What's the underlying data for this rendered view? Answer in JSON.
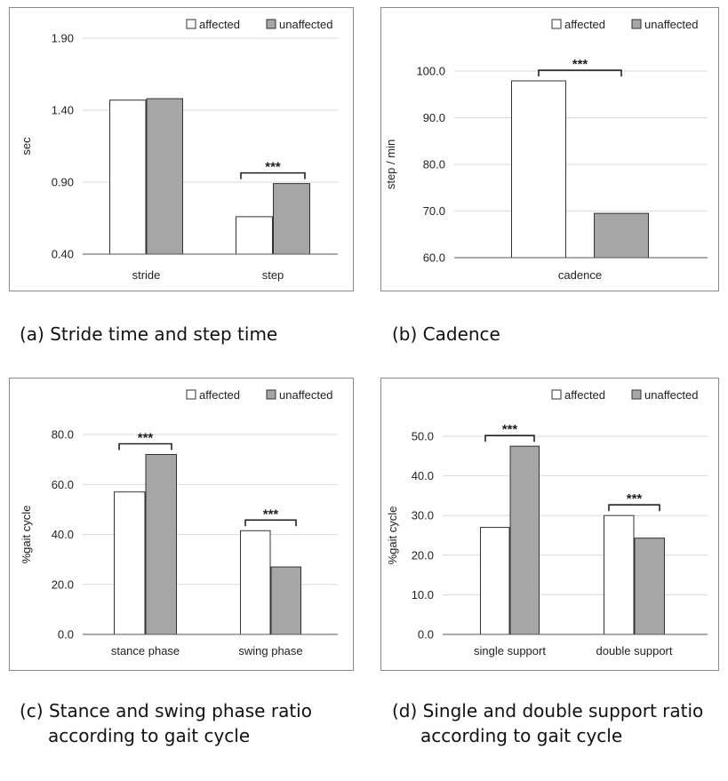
{
  "colors": {
    "affected": "#ffffff",
    "unaffected": "#a6a6a6",
    "border": "#6f6f6f",
    "grid": "#d9d9d9",
    "text": "#222222"
  },
  "legend": {
    "affected": "affected",
    "unaffected": "unaffected"
  },
  "significance_marker": "***",
  "captions": [
    {
      "line1": "(a) Stride time and step time",
      "line2": ""
    },
    {
      "line1": "(b) Cadence",
      "line2": ""
    },
    {
      "line1": "(c) Stance and swing phase ratio",
      "line2": "according to gait cycle"
    },
    {
      "line1": "(d) Single and double support ratio",
      "line2": "according to gait cycle"
    }
  ],
  "chart_data": [
    {
      "type": "bar",
      "ylabel": "sec",
      "ylim": [
        0.4,
        1.9
      ],
      "yticks": [
        "0.40",
        "0.90",
        "1.40",
        "1.90"
      ],
      "ytick_values": [
        0.4,
        0.9,
        1.4,
        1.9
      ],
      "categories": [
        "stride",
        "step"
      ],
      "series": [
        {
          "name": "affected",
          "values": [
            1.47,
            0.66
          ]
        },
        {
          "name": "unaffected",
          "values": [
            1.48,
            0.89
          ]
        }
      ],
      "significance": [
        false,
        true
      ],
      "grid": true,
      "legend": "top-right"
    },
    {
      "type": "bar",
      "ylabel": "step / min",
      "ylim": [
        60,
        100
      ],
      "yticks": [
        "60.0",
        "70.0",
        "80.0",
        "90.0",
        "100.0"
      ],
      "ytick_values": [
        60,
        70,
        80,
        90,
        100
      ],
      "categories": [
        "cadence"
      ],
      "series": [
        {
          "name": "affected",
          "values": [
            97.9
          ]
        },
        {
          "name": "unaffected",
          "values": [
            69.5
          ]
        }
      ],
      "significance": [
        true
      ],
      "grid": true,
      "legend": "top-right"
    },
    {
      "type": "bar",
      "ylabel": "%gait cycle",
      "ylim": [
        0,
        80
      ],
      "yticks": [
        "0.0",
        "20.0",
        "40.0",
        "60.0",
        "80.0"
      ],
      "ytick_values": [
        0,
        20,
        40,
        60,
        80
      ],
      "categories": [
        "stance phase",
        "swing phase"
      ],
      "series": [
        {
          "name": "affected",
          "values": [
            57.0,
            41.5
          ]
        },
        {
          "name": "unaffected",
          "values": [
            72.0,
            27.0
          ]
        }
      ],
      "significance": [
        true,
        true
      ],
      "grid": true,
      "legend": "top-right"
    },
    {
      "type": "bar",
      "ylabel": "%gait cycle",
      "ylim": [
        0,
        50
      ],
      "yticks": [
        "0.0",
        "10.0",
        "20.0",
        "30.0",
        "40.0",
        "50.0"
      ],
      "ytick_values": [
        0,
        10,
        20,
        30,
        40,
        50
      ],
      "categories": [
        "single support",
        "double support"
      ],
      "series": [
        {
          "name": "affected",
          "values": [
            27.0,
            30.0
          ]
        },
        {
          "name": "unaffected",
          "values": [
            47.5,
            24.3
          ]
        }
      ],
      "significance": [
        true,
        true
      ],
      "grid": true,
      "legend": "top-right"
    }
  ]
}
